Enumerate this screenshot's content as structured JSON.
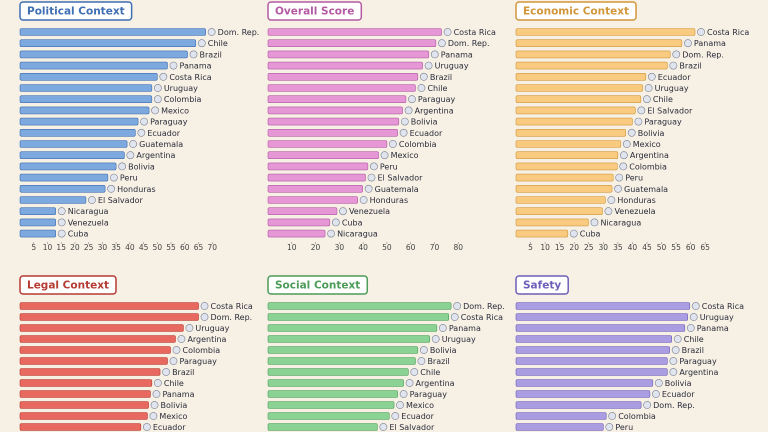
{
  "chart_data": [
    {
      "type": "bar",
      "orientation": "horizontal",
      "title": "Political Context",
      "color": "#7ea9de",
      "edge": "#3f6fb3",
      "categories": [
        "Dom. Rep.",
        "Chile",
        "Brazil",
        "Panama",
        "Costa Rica",
        "Uruguay",
        "Colombia",
        "Mexico",
        "Paraguay",
        "Ecuador",
        "Guatemala",
        "Argentina",
        "Bolivia",
        "Peru",
        "Honduras",
        "El Salvador",
        "Nicaragua",
        "Venezuela",
        "Cuba"
      ],
      "values": [
        67.6,
        64,
        61,
        53.7,
        50,
        48,
        48,
        47,
        43,
        42,
        39,
        38,
        35,
        32,
        31,
        24,
        13,
        13,
        13
      ],
      "xlim": [
        0,
        71
      ],
      "xticks": [
        5,
        10,
        15,
        20,
        25,
        30,
        35,
        40,
        45,
        50,
        55,
        60,
        65,
        70
      ]
    },
    {
      "type": "bar",
      "orientation": "horizontal",
      "title": "Overall Score",
      "color": "#e597d6",
      "edge": "#b45aa3",
      "categories": [
        "Costa Rica",
        "Dom. Rep.",
        "Panama",
        "Uruguay",
        "Brazil",
        "Chile",
        "Paraguay",
        "Argentina",
        "Bolivia",
        "Ecuador",
        "Colombia",
        "Mexico",
        "Peru",
        "El Salvador",
        "Guatemala",
        "Honduras",
        "Venezuela",
        "Cuba",
        "Nicaragua"
      ],
      "values": [
        73,
        70.6,
        67.6,
        65,
        63,
        62,
        58,
        56.6,
        55,
        54.5,
        50,
        46.5,
        42,
        41,
        39.8,
        37.7,
        29,
        26,
        24
      ],
      "xlim": [
        0,
        82
      ],
      "xticks": [
        10,
        20,
        30,
        40,
        50,
        60,
        70,
        80
      ]
    },
    {
      "type": "bar",
      "orientation": "horizontal",
      "title": "Economic Context",
      "color": "#f8cb80",
      "edge": "#d2963a",
      "categories": [
        "Costa Rica",
        "Panama",
        "Dom. Rep.",
        "Brazil",
        "Ecuador",
        "Uruguay",
        "Chile",
        "El Salvador",
        "Paraguay",
        "Bolivia",
        "Mexico",
        "Argentina",
        "Colombia",
        "Peru",
        "Guatemala",
        "Honduras",
        "Venezuela",
        "Nicaragua",
        "Cuba"
      ],
      "values": [
        61.5,
        57,
        53,
        52,
        44.6,
        43.5,
        42.9,
        41,
        40,
        37.7,
        36,
        35,
        34.8,
        33.4,
        33,
        30.7,
        29.7,
        24.9,
        17.8
      ],
      "xlim": [
        0,
        67
      ],
      "xticks": [
        5,
        10,
        15,
        20,
        25,
        30,
        35,
        40,
        45,
        50,
        55,
        60,
        65
      ]
    },
    {
      "type": "bar",
      "orientation": "horizontal",
      "title": "Legal Context",
      "color": "#e8695f",
      "edge": "#b53b33",
      "categories": [
        "Costa Rica",
        "Dom. Rep.",
        "Uruguay",
        "Argentina",
        "Colombia",
        "Paraguay",
        "Brazil",
        "Chile",
        "Panama",
        "Bolivia",
        "Mexico",
        "Ecuador"
      ],
      "values": [
        65,
        65,
        59.5,
        56.6,
        54.8,
        53.7,
        51,
        48,
        47.5,
        46.8,
        46.4,
        44
      ],
      "xlim": [
        0,
        71
      ]
    },
    {
      "type": "bar",
      "orientation": "horizontal",
      "title": "Social Context",
      "color": "#8bd394",
      "edge": "#4d9c57",
      "categories": [
        "Dom. Rep.",
        "Costa Rica",
        "Panama",
        "Uruguay",
        "Bolivia",
        "Brazil",
        "Chile",
        "Argentina",
        "Paraguay",
        "Mexico",
        "Ecuador",
        "El Salvador"
      ],
      "values": [
        77,
        76,
        71,
        68,
        63,
        62,
        59,
        57,
        54.5,
        53,
        51,
        46
      ],
      "xlim": [
        0,
        82
      ]
    },
    {
      "type": "bar",
      "orientation": "horizontal",
      "title": "Safety",
      "color": "#ab9de2",
      "edge": "#6f5fb8",
      "categories": [
        "Costa Rica",
        "Uruguay",
        "Panama",
        "Chile",
        "Brazil",
        "Paraguay",
        "Argentina",
        "Bolivia",
        "Ecuador",
        "Dom. Rep.",
        "Colombia",
        "Peru"
      ],
      "values": [
        59.7,
        59,
        58,
        53.5,
        52.8,
        52,
        52,
        47,
        46,
        43,
        31,
        30
      ],
      "xlim": [
        0,
        67
      ]
    }
  ]
}
